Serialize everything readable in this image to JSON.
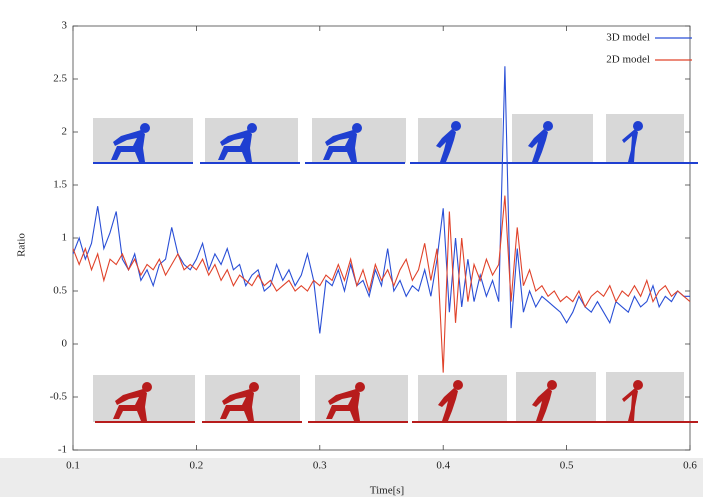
{
  "chart_data": {
    "type": "line",
    "x_label": "Time[s]",
    "y_label": "Ratio",
    "xlim": [
      0.1,
      0.6
    ],
    "ylim": [
      -1,
      3
    ],
    "xticks": [
      0.1,
      0.2,
      0.3,
      0.4,
      0.5,
      0.6
    ],
    "yticks": [
      -1,
      -0.5,
      0,
      0.5,
      1,
      1.5,
      2,
      2.5,
      3
    ],
    "grid": false,
    "legend": "upper right",
    "x": [
      0.1,
      0.105,
      0.11,
      0.115,
      0.12,
      0.125,
      0.13,
      0.135,
      0.14,
      0.145,
      0.15,
      0.155,
      0.16,
      0.165,
      0.17,
      0.175,
      0.18,
      0.185,
      0.19,
      0.195,
      0.2,
      0.205,
      0.21,
      0.215,
      0.22,
      0.225,
      0.23,
      0.235,
      0.24,
      0.245,
      0.25,
      0.255,
      0.26,
      0.265,
      0.27,
      0.275,
      0.28,
      0.285,
      0.29,
      0.295,
      0.3,
      0.305,
      0.31,
      0.315,
      0.32,
      0.325,
      0.33,
      0.335,
      0.34,
      0.345,
      0.35,
      0.355,
      0.36,
      0.365,
      0.37,
      0.375,
      0.38,
      0.385,
      0.39,
      0.395,
      0.4,
      0.405,
      0.41,
      0.415,
      0.42,
      0.425,
      0.43,
      0.435,
      0.44,
      0.445,
      0.45,
      0.455,
      0.46,
      0.465,
      0.47,
      0.475,
      0.48,
      0.485,
      0.49,
      0.495,
      0.5,
      0.505,
      0.51,
      0.515,
      0.52,
      0.525,
      0.53,
      0.535,
      0.54,
      0.545,
      0.55,
      0.555,
      0.56,
      0.565,
      0.57,
      0.575,
      0.58,
      0.585,
      0.59,
      0.595,
      0.6
    ],
    "series": [
      {
        "name": "3D model",
        "color": "#2a4fd6",
        "values": [
          0.85,
          1.0,
          0.8,
          0.95,
          1.3,
          0.9,
          1.05,
          1.25,
          0.8,
          0.7,
          0.85,
          0.6,
          0.7,
          0.55,
          0.75,
          0.8,
          1.1,
          0.85,
          0.75,
          0.7,
          0.8,
          0.95,
          0.7,
          0.85,
          0.75,
          0.9,
          0.7,
          0.75,
          0.55,
          0.65,
          0.7,
          0.5,
          0.55,
          0.75,
          0.6,
          0.7,
          0.55,
          0.65,
          0.85,
          0.6,
          0.1,
          0.6,
          0.55,
          0.7,
          0.5,
          0.75,
          0.55,
          0.6,
          0.45,
          0.7,
          0.55,
          0.9,
          0.5,
          0.6,
          0.45,
          0.55,
          0.5,
          0.7,
          0.45,
          0.8,
          1.28,
          0.3,
          1.0,
          0.35,
          0.8,
          0.4,
          0.65,
          0.45,
          0.6,
          0.4,
          2.62,
          0.15,
          0.9,
          0.3,
          0.5,
          0.35,
          0.45,
          0.4,
          0.35,
          0.3,
          0.2,
          0.3,
          0.45,
          0.35,
          0.3,
          0.4,
          0.3,
          0.2,
          0.4,
          0.35,
          0.3,
          0.45,
          0.35,
          0.4,
          0.55,
          0.35,
          0.45,
          0.4,
          0.5,
          0.45,
          0.45
        ]
      },
      {
        "name": "2D model",
        "color": "#e0432b",
        "values": [
          0.9,
          0.75,
          0.9,
          0.7,
          0.85,
          0.6,
          0.8,
          0.75,
          0.85,
          0.7,
          0.8,
          0.65,
          0.75,
          0.7,
          0.8,
          0.65,
          0.75,
          0.85,
          0.7,
          0.75,
          0.7,
          0.8,
          0.65,
          0.75,
          0.6,
          0.7,
          0.55,
          0.65,
          0.6,
          0.55,
          0.65,
          0.55,
          0.6,
          0.5,
          0.55,
          0.6,
          0.5,
          0.55,
          0.5,
          0.6,
          0.55,
          0.65,
          0.6,
          0.75,
          0.6,
          0.8,
          0.55,
          0.7,
          0.5,
          0.75,
          0.6,
          0.7,
          0.55,
          0.7,
          0.8,
          0.6,
          0.7,
          0.95,
          0.6,
          0.9,
          -0.27,
          1.25,
          0.2,
          1.0,
          0.4,
          0.75,
          0.6,
          0.8,
          0.65,
          0.75,
          1.4,
          0.4,
          1.1,
          0.55,
          0.7,
          0.5,
          0.55,
          0.45,
          0.5,
          0.4,
          0.45,
          0.4,
          0.5,
          0.35,
          0.45,
          0.5,
          0.45,
          0.55,
          0.4,
          0.5,
          0.45,
          0.55,
          0.45,
          0.6,
          0.4,
          0.5,
          0.55,
          0.45,
          0.5,
          0.45,
          0.4
        ]
      }
    ]
  }
}
